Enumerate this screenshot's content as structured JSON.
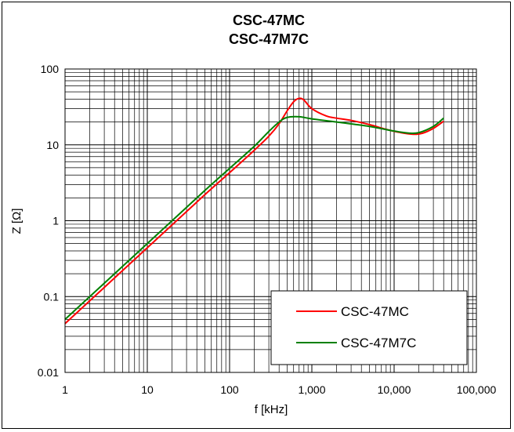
{
  "chart_data": {
    "type": "line",
    "title_lines": [
      "CSC-47MC",
      "CSC-47M7C"
    ],
    "xlabel": "f [kHz]",
    "ylabel": "Z [Ω]",
    "x_scale": "log",
    "y_scale": "log",
    "xlim": [
      1,
      100000
    ],
    "ylim": [
      0.01,
      100
    ],
    "x_ticks": [
      1,
      10,
      100,
      1000,
      10000,
      100000
    ],
    "x_tick_labels": [
      "1",
      "10",
      "100",
      "1,000",
      "10,000",
      "100,000"
    ],
    "y_ticks": [
      0.01,
      0.1,
      1,
      10,
      100
    ],
    "y_tick_labels": [
      "0.01",
      "0.1",
      "1",
      "10",
      "100"
    ],
    "grid": true,
    "legend_position": "bottom-right",
    "series": [
      {
        "name": "CSC-47MC",
        "color": "#ff0000",
        "points": [
          [
            1,
            0.044
          ],
          [
            2,
            0.088
          ],
          [
            5,
            0.22
          ],
          [
            10,
            0.44
          ],
          [
            20,
            0.88
          ],
          [
            50,
            2.2
          ],
          [
            100,
            4.3
          ],
          [
            200,
            8.5
          ],
          [
            300,
            13
          ],
          [
            400,
            19
          ],
          [
            500,
            28
          ],
          [
            600,
            37
          ],
          [
            700,
            41
          ],
          [
            800,
            39
          ],
          [
            1000,
            30
          ],
          [
            1500,
            24
          ],
          [
            2000,
            22.5
          ],
          [
            3000,
            21
          ],
          [
            5000,
            18.5
          ],
          [
            8000,
            16
          ],
          [
            12000,
            14.5
          ],
          [
            17000,
            13.8
          ],
          [
            22000,
            14.2
          ],
          [
            30000,
            16.5
          ],
          [
            40000,
            20.5
          ]
        ]
      },
      {
        "name": "CSC-47M7C",
        "color": "#008000",
        "points": [
          [
            1,
            0.05
          ],
          [
            2,
            0.1
          ],
          [
            5,
            0.25
          ],
          [
            10,
            0.5
          ],
          [
            20,
            1.0
          ],
          [
            50,
            2.5
          ],
          [
            100,
            4.9
          ],
          [
            200,
            9.6
          ],
          [
            300,
            15
          ],
          [
            400,
            20
          ],
          [
            500,
            23
          ],
          [
            700,
            23.5
          ],
          [
            1000,
            22
          ],
          [
            2000,
            20
          ],
          [
            5000,
            17.5
          ],
          [
            10000,
            15.2
          ],
          [
            15000,
            14.3
          ],
          [
            20000,
            14.5
          ],
          [
            30000,
            17.5
          ],
          [
            40000,
            22.5
          ]
        ]
      }
    ]
  }
}
